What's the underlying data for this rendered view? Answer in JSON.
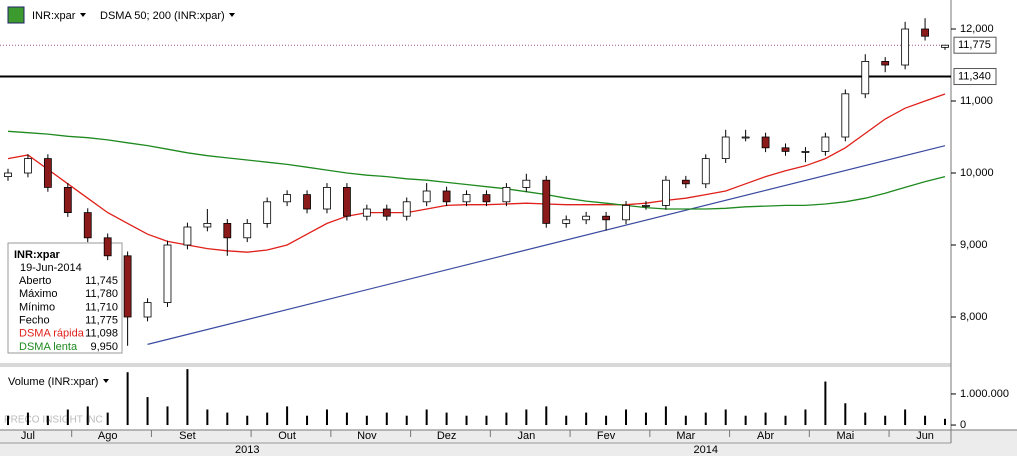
{
  "chart_data": {
    "type": "candlestick",
    "symbol": "INR:xpar",
    "indicator_title": "DSMA 50; 200 (INR:xpar)",
    "watermark": "PRECO INSIGHT INC",
    "categories": [
      null,
      "Jul",
      null,
      null,
      null,
      "Ago",
      null,
      null,
      null,
      "Set",
      null,
      null,
      null,
      null,
      "Out",
      null,
      null,
      null,
      "Nov",
      null,
      null,
      null,
      "Dez",
      null,
      null,
      null,
      "Jan",
      null,
      null,
      null,
      "Fev",
      null,
      null,
      null,
      "Mar",
      null,
      null,
      null,
      "Abr",
      null,
      null,
      null,
      "Mai",
      null,
      null,
      null,
      "Jun",
      null
    ],
    "year_categories": [
      null,
      null,
      null,
      null,
      null,
      null,
      null,
      null,
      null,
      null,
      null,
      null,
      "2013",
      null,
      null,
      null,
      null,
      null,
      null,
      null,
      null,
      null,
      null,
      null,
      null,
      null,
      null,
      null,
      null,
      null,
      null,
      null,
      null,
      null,
      null,
      "2014",
      null,
      null,
      null,
      null,
      null,
      null,
      null,
      null,
      null,
      null,
      null,
      null
    ],
    "ohlc": [
      [
        9950,
        10060,
        9890,
        10000
      ],
      [
        10000,
        10260,
        9940,
        10200
      ],
      [
        10200,
        10260,
        9740,
        9800
      ],
      [
        9800,
        9860,
        9390,
        9450
      ],
      [
        9450,
        9510,
        9040,
        9100
      ],
      [
        9100,
        9160,
        8790,
        8850
      ],
      [
        8850,
        8910,
        7600,
        8000
      ],
      [
        8000,
        8260,
        7940,
        8200
      ],
      [
        8200,
        9060,
        8140,
        9000
      ],
      [
        9000,
        9310,
        8940,
        9250
      ],
      [
        9250,
        9500,
        9190,
        9300
      ],
      [
        9300,
        9360,
        8850,
        9100
      ],
      [
        9100,
        9360,
        9040,
        9300
      ],
      [
        9300,
        9660,
        9240,
        9600
      ],
      [
        9600,
        9760,
        9540,
        9700
      ],
      [
        9700,
        9760,
        9440,
        9500
      ],
      [
        9500,
        9860,
        9440,
        9800
      ],
      [
        9800,
        9860,
        9340,
        9400
      ],
      [
        9400,
        9560,
        9340,
        9500
      ],
      [
        9500,
        9560,
        9340,
        9400
      ],
      [
        9400,
        9660,
        9340,
        9600
      ],
      [
        9600,
        9860,
        9540,
        9750
      ],
      [
        9750,
        9810,
        9540,
        9600
      ],
      [
        9600,
        9760,
        9540,
        9700
      ],
      [
        9700,
        9760,
        9540,
        9600
      ],
      [
        9600,
        9860,
        9540,
        9800
      ],
      [
        9800,
        9990,
        9740,
        9900
      ],
      [
        9900,
        9960,
        9240,
        9300
      ],
      [
        9300,
        9410,
        9240,
        9350
      ],
      [
        9350,
        9460,
        9290,
        9400
      ],
      [
        9400,
        9460,
        9200,
        9350
      ],
      [
        9350,
        9610,
        9290,
        9550
      ],
      [
        9550,
        9610,
        9490,
        9550
      ],
      [
        9550,
        9960,
        9490,
        9900
      ],
      [
        9900,
        9960,
        9790,
        9850
      ],
      [
        9850,
        10260,
        9790,
        10200
      ],
      [
        10200,
        10600,
        10140,
        10500
      ],
      [
        10500,
        10600,
        10440,
        10500
      ],
      [
        10500,
        10560,
        10290,
        10350
      ],
      [
        10350,
        10410,
        10240,
        10300
      ],
      [
        10300,
        10360,
        10150,
        10300
      ],
      [
        10300,
        10560,
        10240,
        10500
      ],
      [
        10500,
        11160,
        10440,
        11100
      ],
      [
        11100,
        11650,
        11040,
        11550
      ],
      [
        11550,
        11610,
        11400,
        11500
      ],
      [
        11500,
        12100,
        11440,
        12000
      ],
      [
        12000,
        12150,
        11840,
        11900
      ],
      [
        11745,
        11780,
        11710,
        11775
      ]
    ],
    "up_color": "#ffffff",
    "down_color": "#8b1a1a",
    "series": [
      {
        "name": "DSMA rápida",
        "color": "#e0201a",
        "values": [
          10200,
          10250,
          10050,
          9850,
          9650,
          9450,
          9300,
          9150,
          9050,
          9000,
          8950,
          8920,
          8900,
          8930,
          9000,
          9150,
          9300,
          9400,
          9450,
          9450,
          9450,
          9500,
          9550,
          9560,
          9560,
          9570,
          9580,
          9570,
          9560,
          9560,
          9560,
          9560,
          9580,
          9620,
          9650,
          9700,
          9750,
          9850,
          9950,
          10030,
          10100,
          10200,
          10350,
          10550,
          10750,
          10900,
          11000,
          11098
        ]
      },
      {
        "name": "DSMA lenta",
        "color": "#1f8a1f",
        "values": [
          10580,
          10560,
          10540,
          10510,
          10490,
          10460,
          10420,
          10380,
          10330,
          10280,
          10240,
          10210,
          10180,
          10150,
          10120,
          10080,
          10040,
          10000,
          9970,
          9950,
          9920,
          9900,
          9870,
          9840,
          9810,
          9780,
          9740,
          9700,
          9650,
          9610,
          9580,
          9550,
          9520,
          9500,
          9500,
          9500,
          9510,
          9530,
          9540,
          9550,
          9550,
          9570,
          9600,
          9650,
          9720,
          9800,
          9880,
          9950
        ]
      }
    ],
    "trendline": {
      "color": "#3a4aa0",
      "from": {
        "index": 7,
        "value": 7620
      },
      "to": {
        "index": 47,
        "value": 10380
      }
    },
    "price_lines": [
      {
        "value": 11775,
        "label": "11,775",
        "color": "#a0508c",
        "style": "dotted"
      },
      {
        "value": 11340,
        "label": "11,340",
        "color": "#000000",
        "style": "solid"
      }
    ],
    "ylim": [
      7375,
      12403
    ],
    "yticks": [
      {
        "value": 8000,
        "label": "8,000"
      },
      {
        "value": 9000,
        "label": "9,000"
      },
      {
        "value": 10000,
        "label": "10,000"
      },
      {
        "value": 11000,
        "label": "11,000"
      },
      {
        "value": 12000,
        "label": "12,000"
      }
    ],
    "volume": {
      "title": "Volume (INR:xpar)",
      "color": "#000000",
      "values": [
        300000,
        400000,
        300000,
        500000,
        600000,
        400000,
        1700000,
        900000,
        600000,
        1800000,
        500000,
        400000,
        300000,
        400000,
        600000,
        300000,
        500000,
        400000,
        300000,
        400000,
        300000,
        500000,
        400000,
        300000,
        300000,
        400000,
        500000,
        600000,
        300000,
        400000,
        300000,
        500000,
        400000,
        600000,
        300000,
        400000,
        500000,
        300000,
        400000,
        300000,
        500000,
        1400000,
        700000,
        400000,
        300000,
        500000,
        300000,
        200000
      ],
      "ylim": [
        -160000,
        1900000
      ],
      "yticks": [
        {
          "value": 1000000,
          "label": "1.000.000"
        },
        0
      ]
    },
    "info_box": {
      "title": "INR:xpar",
      "date": "19-Jun-2014",
      "rows": [
        [
          "Aberto",
          "11,745"
        ],
        [
          "Máximo",
          "11,780"
        ],
        [
          "Mínimo",
          "11,710"
        ],
        [
          "Fecho",
          "11,775"
        ],
        [
          "DSMA rápida",
          "11,098"
        ],
        [
          "DSMA lenta",
          "9,950"
        ]
      ]
    }
  }
}
